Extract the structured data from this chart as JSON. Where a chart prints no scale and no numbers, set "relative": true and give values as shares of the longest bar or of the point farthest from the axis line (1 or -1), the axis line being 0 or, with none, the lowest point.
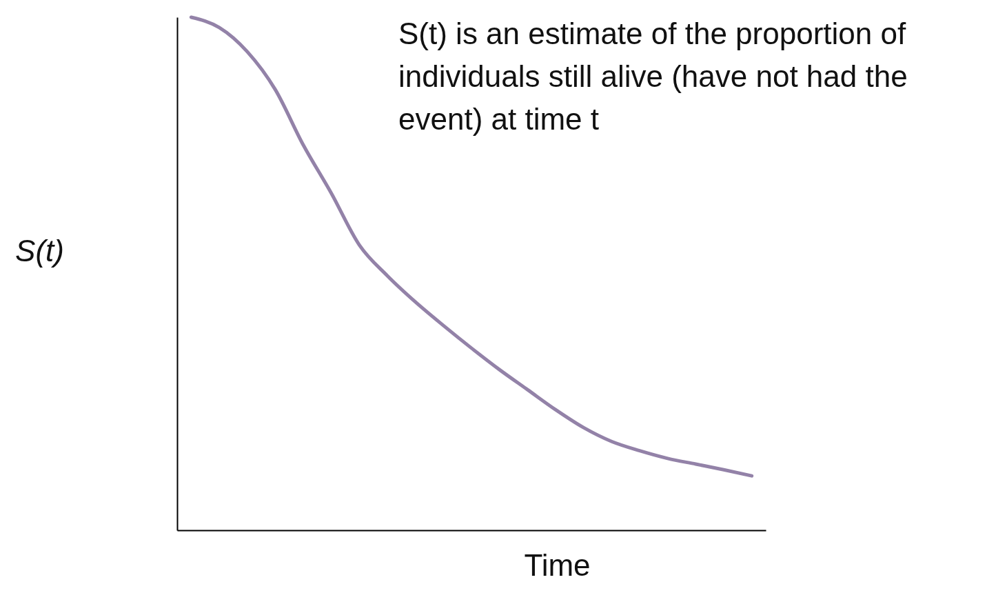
{
  "chart_data": {
    "type": "line",
    "relative": true,
    "xlabel": "Time",
    "ylabel": "S(t)",
    "annotations": [
      "S(t) is an estimate of the proportion of individuals still alive (have not had the event) at time t"
    ],
    "categories": [
      null,
      null,
      null,
      null,
      null,
      null,
      null,
      null,
      null,
      null,
      null,
      null,
      null,
      null,
      null,
      null,
      null,
      null,
      null,
      null,
      null
    ],
    "series": [
      {
        "color": "#9382a8",
        "values": [
          1.0,
          0.98,
          0.933,
          0.859,
          0.751,
          0.657,
          0.556,
          0.496,
          0.445,
          0.399,
          0.355,
          0.313,
          0.274,
          0.235,
          0.2,
          0.173,
          0.155,
          0.14,
          0.129,
          0.118,
          0.106
        ]
      }
    ]
  }
}
